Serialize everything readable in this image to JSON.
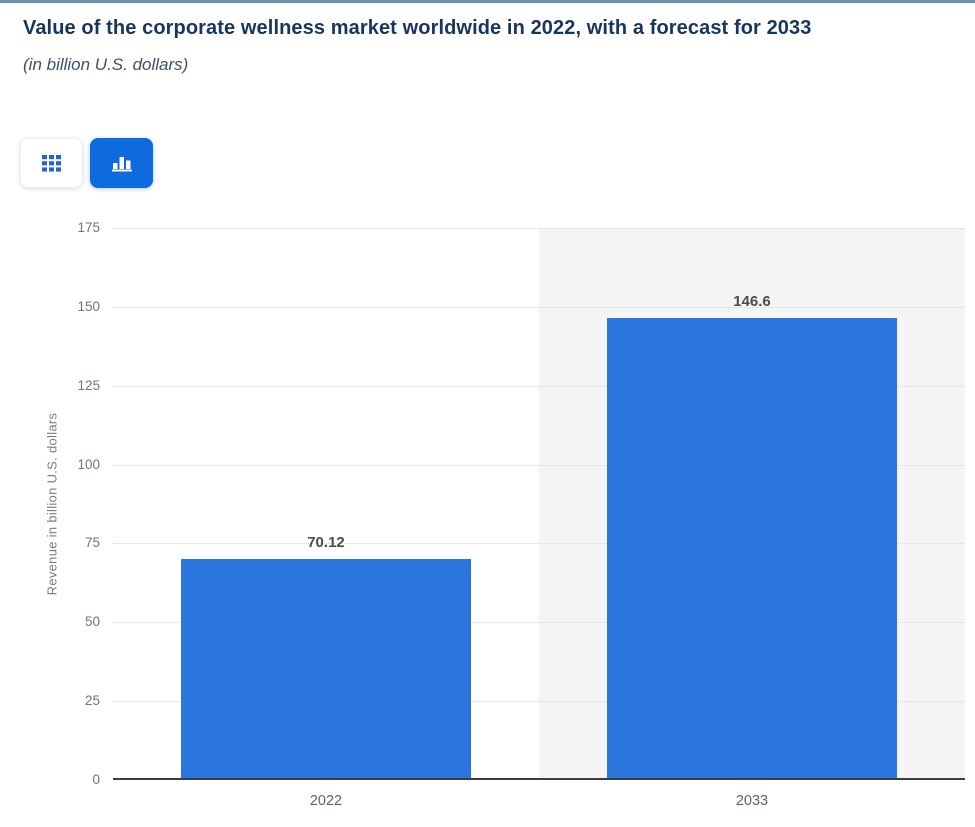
{
  "page": {
    "title": "Value of the corporate wellness market worldwide in 2022, with a forecast for 2033",
    "subtitle": "(in billion U.S. dollars)",
    "top_border_color": "#7090b4"
  },
  "toolbar": {
    "table_button": {
      "icon": "grid-icon",
      "active": false,
      "icon_color": "#2563cf"
    },
    "chart_button": {
      "icon": "bar-chart-icon",
      "active": true,
      "background": "#0f6ade",
      "icon_color": "#ffffff"
    }
  },
  "chart_data": {
    "type": "bar",
    "title": "Value of the corporate wellness market worldwide in 2022, with a forecast for 2033",
    "subtitle": "(in billion U.S. dollars)",
    "categories": [
      "2022",
      "2033"
    ],
    "values": [
      70.12,
      146.6
    ],
    "value_labels": [
      "70.12",
      "146.6"
    ],
    "xlabel": "",
    "ylabel": "Revenue in billion U.S. dollars",
    "ylim": [
      0,
      175
    ],
    "yticks": [
      0,
      25,
      50,
      75,
      100,
      125,
      150,
      175
    ],
    "grid": true,
    "gridline_style": "dotted",
    "bar_color": "#2b76de",
    "highlighted_category": "2033",
    "highlight_band_color": "#f5f5f6",
    "legend": null
  }
}
